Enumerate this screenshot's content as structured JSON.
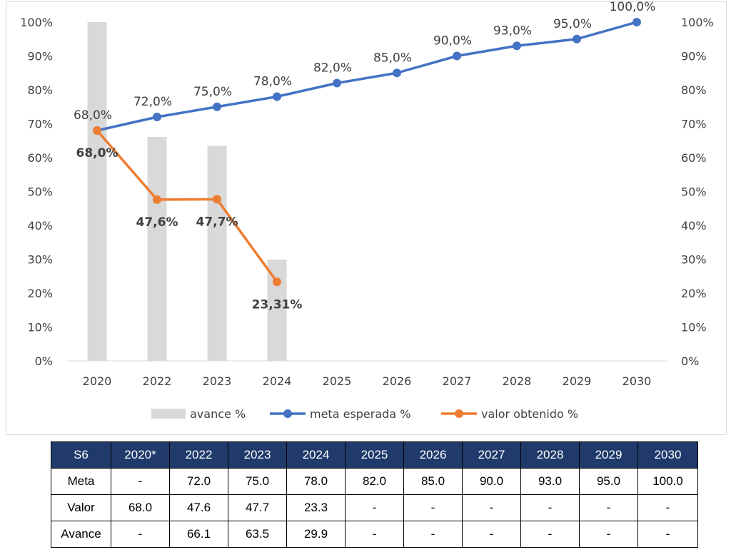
{
  "colors": {
    "bar": "#d9d9d9",
    "meta": "#4472c4",
    "valor": "#ed7d31",
    "axis_text": "#404040",
    "table_header_bg": "#1f3a6b"
  },
  "chart_data": {
    "type": "bar",
    "categories": [
      "2020",
      "2022",
      "2023",
      "2024",
      "2025",
      "2026",
      "2027",
      "2028",
      "2029",
      "2030"
    ],
    "ylim": [
      0,
      100
    ],
    "yticks_left": [
      "0%",
      "10%",
      "20%",
      "30%",
      "40%",
      "50%",
      "60%",
      "70%",
      "80%",
      "90%",
      "100%"
    ],
    "yticks_right": [
      "0%",
      "10%",
      "20%",
      "30%",
      "40%",
      "50%",
      "60%",
      "70%",
      "80%",
      "90%",
      "100%"
    ],
    "grid": false,
    "legend_position": "bottom",
    "series": [
      {
        "name": "avance %",
        "type": "bar",
        "values": [
          100,
          66.1,
          63.5,
          29.9,
          null,
          null,
          null,
          null,
          null,
          null
        ],
        "labels": []
      },
      {
        "name": "meta esperada %",
        "type": "line",
        "values": [
          68,
          72,
          75,
          78,
          82,
          85,
          90,
          93,
          95,
          100
        ],
        "labels": [
          "68,0%",
          "72,0%",
          "75,0%",
          "78,0%",
          "82,0%",
          "85,0%",
          "90,0%",
          "93,0%",
          "95,0%",
          "100,0%"
        ]
      },
      {
        "name": "valor obtenido %",
        "type": "line",
        "values": [
          68,
          47.6,
          47.7,
          23.31,
          null,
          null,
          null,
          null,
          null,
          null
        ],
        "labels": [
          "68,0%",
          "47,6%",
          "47,7%",
          "23,31%",
          null,
          null,
          null,
          null,
          null,
          null
        ]
      }
    ]
  },
  "table": {
    "header": [
      "S6",
      "2020*",
      "2022",
      "2023",
      "2024",
      "2025",
      "2026",
      "2027",
      "2028",
      "2029",
      "2030"
    ],
    "rows": [
      [
        "Meta",
        "-",
        "72.0",
        "75.0",
        "78.0",
        "82.0",
        "85.0",
        "90.0",
        "93.0",
        "95.0",
        "100.0"
      ],
      [
        "Valor",
        "68.0",
        "47.6",
        "47.7",
        "23.3",
        "-",
        "-",
        "-",
        "-",
        "-",
        "-"
      ],
      [
        "Avance",
        "-",
        "66.1",
        "63.5",
        "29.9",
        "-",
        "-",
        "-",
        "-",
        "-",
        "-"
      ]
    ]
  }
}
